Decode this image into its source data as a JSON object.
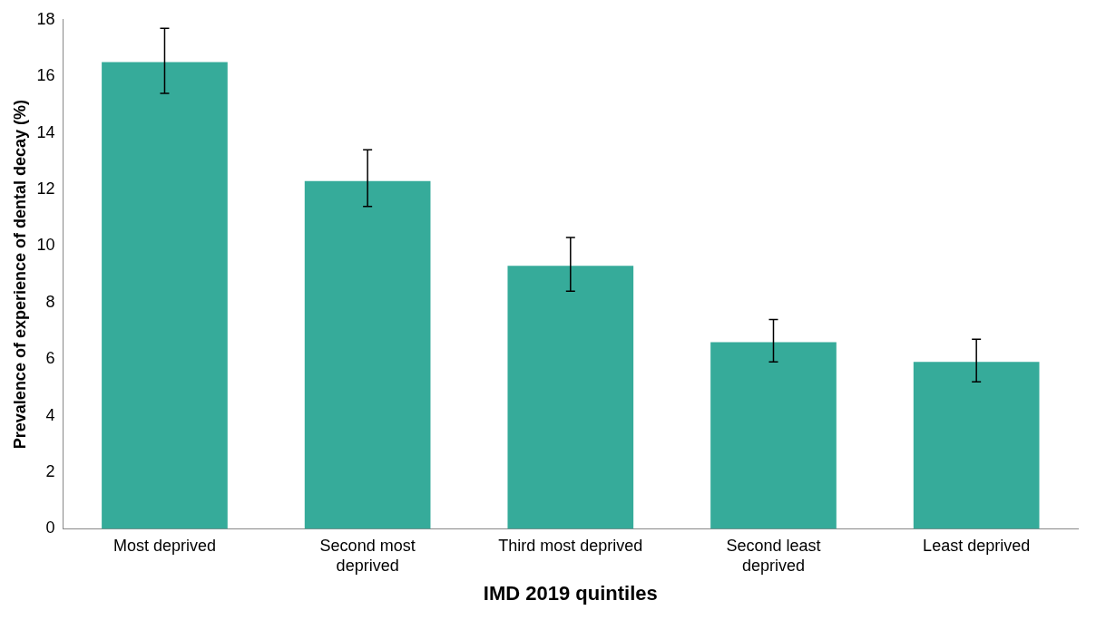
{
  "chart_data": {
    "type": "bar",
    "xlabel": "IMD 2019 quintiles",
    "ylabel": "Prevalence of experience of dental decay (%)",
    "categories": [
      "Most deprived",
      "Second most deprived",
      "Third most deprived",
      "Second least deprived",
      "Least deprived"
    ],
    "values": [
      16.5,
      12.3,
      9.3,
      6.6,
      5.9
    ],
    "errors": [
      [
        15.4,
        17.7
      ],
      [
        11.4,
        13.4
      ],
      [
        8.4,
        10.3
      ],
      [
        5.9,
        7.4
      ],
      [
        5.2,
        6.7
      ]
    ],
    "color": "#36ab9a",
    "ylim": [
      0,
      18
    ],
    "yticks": [
      0,
      2,
      4,
      6,
      8,
      10,
      12,
      14,
      16,
      18
    ],
    "grid": false,
    "legend": false
  }
}
